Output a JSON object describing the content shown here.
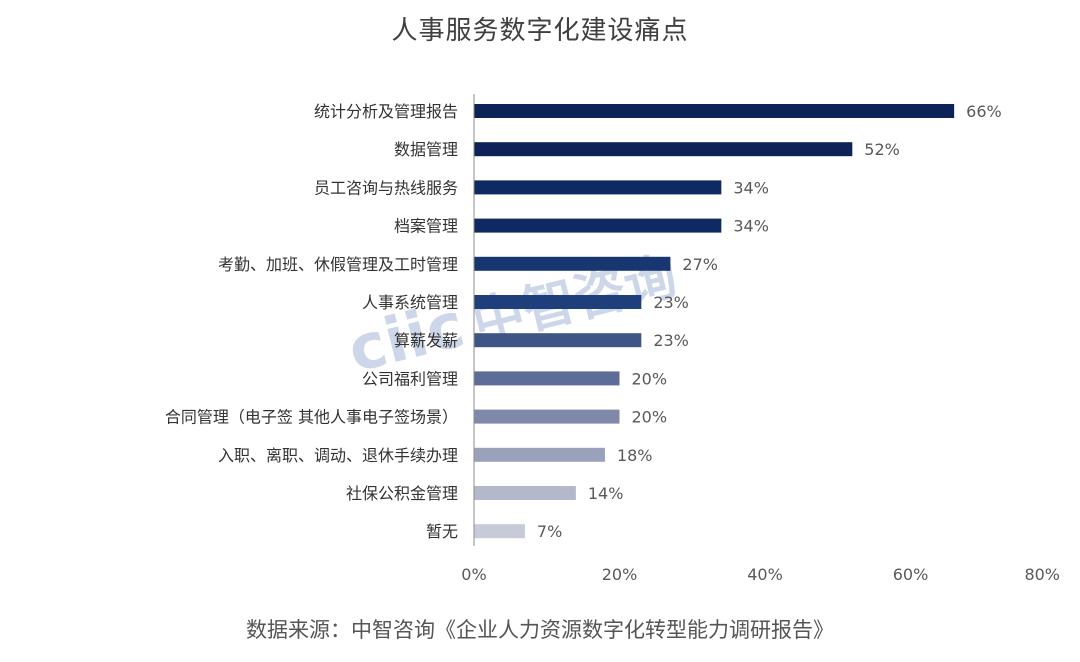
{
  "title": "人事服务数字化建设痛点",
  "source": "数据来源：中智咨询《企业人力资源数字化转型能力调研报告》",
  "watermark": {
    "logo_text": "ciic",
    "brand_text": "中智咨询",
    "color": "#1f4e9e"
  },
  "chart_data": {
    "type": "bar",
    "orientation": "horizontal",
    "title": "人事服务数字化建设痛点",
    "categories": [
      "统计分析及管理报告",
      "数据管理",
      "员工咨询与热线服务",
      "档案管理",
      "考勤、加班、休假管理及工时管理",
      "人事系统管理",
      "算薪发薪",
      "公司福利管理",
      "合同管理（电子签  其他人事电子签场景）",
      "入职、离职、调动、退休手续办理",
      "社保公积金管理",
      "暂无"
    ],
    "values": [
      66,
      52,
      34,
      34,
      27,
      23,
      23,
      20,
      20,
      18,
      14,
      7
    ],
    "value_labels": [
      "66%",
      "52%",
      "34%",
      "34%",
      "27%",
      "23%",
      "23%",
      "20%",
      "20%",
      "18%",
      "14%",
      "7%"
    ],
    "bar_colors": [
      "#0d2357",
      "#0d2357",
      "#0f2a62",
      "#0f2a62",
      "#183670",
      "#1f3f7c",
      "#3f5585",
      "#5e6d97",
      "#8089a9",
      "#9aa1bb",
      "#b3b8cb",
      "#c7cad7"
    ],
    "xlim": [
      0,
      80
    ],
    "xticks": [
      0,
      20,
      40,
      60,
      80
    ],
    "xtick_labels": [
      "0%",
      "20%",
      "40%",
      "60%",
      "80%"
    ],
    "grid": false,
    "legend": "none"
  }
}
